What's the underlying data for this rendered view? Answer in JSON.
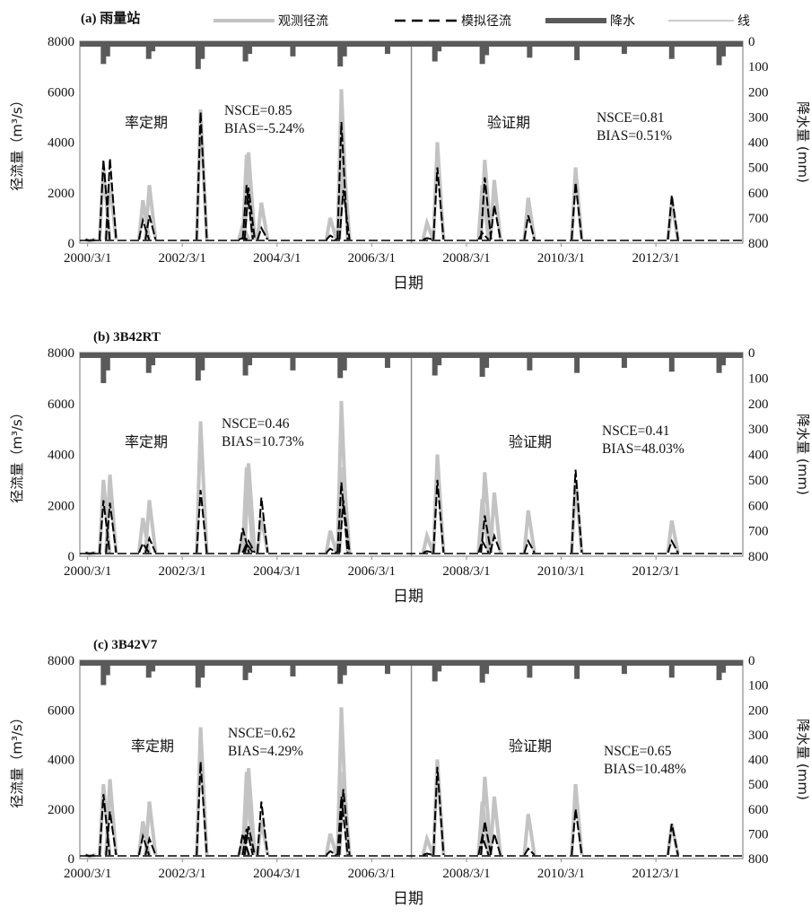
{
  "legend": {
    "observed": "观测径流",
    "simulated": "模拟径流",
    "precip": "降水",
    "line": "线"
  },
  "colors": {
    "observed": "#c3c3c3",
    "simulated": "#000000",
    "precip": "#5a5a5a",
    "frame": "#8c8c8c"
  },
  "chart_data": [
    {
      "type": "line",
      "title": "(a) 雨量站",
      "xlabel": "日期",
      "ylabel": "径流量（m³/s）",
      "y2label": "降水量 (mm)",
      "xlim": [
        "2000-01-01",
        "2013-12-31"
      ],
      "ylim": [
        0,
        8000
      ],
      "y2lim": [
        0,
        800
      ],
      "y2_inverted": true,
      "split_date": "2007-01-01",
      "xticks": [
        "2000/3/1",
        "2002/3/1",
        "2004/3/1",
        "2006/3/1",
        "2008/3/1",
        "2010/3/1",
        "2012/3/1"
      ],
      "yticks": [
        "0",
        "2000",
        "4000",
        "6000",
        "8000"
      ],
      "y2ticks": [
        "0",
        "100",
        "200",
        "300",
        "400",
        "500",
        "600",
        "700",
        "800"
      ],
      "periods": {
        "calibration": "率定期",
        "validation": "验证期"
      },
      "stats": {
        "calibration": {
          "nsce": "NSCE=0.85",
          "bias": "BIAS=-5.24%"
        },
        "validation": {
          "nsce": "NSCE=0.81",
          "bias": "BIAS=0.51%"
        }
      },
      "grid": false,
      "legend_position": "top",
      "series": [
        {
          "name": "观测径流",
          "x": [
            "2000-03-15",
            "2000-07-01",
            "2000-08-20",
            "2001-05-01",
            "2001-06-20",
            "2002-07-20",
            "2003-06-10",
            "2003-07-10",
            "2003-07-25",
            "2003-11-01",
            "2005-04-15",
            "2005-07-10",
            "2005-07-25",
            "2007-05-01",
            "2007-07-20",
            "2008-07-01",
            "2008-07-20",
            "2008-10-01",
            "2009-06-20",
            "2010-06-20",
            "2012-07-01"
          ],
          "values": [
            100,
            3000,
            2400,
            1700,
            2300,
            5300,
            700,
            3500,
            3600,
            1600,
            1000,
            6100,
            3500,
            800,
            4000,
            2300,
            3300,
            2500,
            1800,
            3000,
            1600
          ]
        },
        {
          "name": "模拟径流",
          "x": [
            "2000-03-15",
            "2000-07-01",
            "2000-08-20",
            "2001-05-01",
            "2001-06-20",
            "2002-07-20",
            "2003-06-10",
            "2003-07-10",
            "2003-07-25",
            "2003-11-01",
            "2005-04-15",
            "2005-07-10",
            "2005-07-25",
            "2007-05-01",
            "2007-07-20",
            "2008-07-01",
            "2008-07-20",
            "2008-10-01",
            "2009-06-20",
            "2010-06-20",
            "2012-07-01"
          ],
          "values": [
            100,
            3300,
            3350,
            900,
            1100,
            5200,
            200,
            2300,
            2200,
            600,
            300,
            4800,
            2100,
            200,
            3000,
            400,
            2600,
            1500,
            1100,
            2400,
            1900
          ]
        },
        {
          "name": "降水",
          "x": [
            "2000-07-01",
            "2000-08-01",
            "2001-06-15",
            "2001-07-15",
            "2002-07-01",
            "2002-08-01",
            "2003-07-01",
            "2003-08-01",
            "2004-07-01",
            "2005-07-01",
            "2005-08-01",
            "2006-07-01",
            "2007-07-01",
            "2007-08-01",
            "2008-07-01",
            "2008-08-01",
            "2009-07-01",
            "2010-07-01",
            "2011-07-01",
            "2012-07-01",
            "2013-07-01",
            "2013-08-01"
          ],
          "values": [
            90,
            60,
            70,
            40,
            110,
            70,
            80,
            50,
            60,
            100,
            60,
            50,
            80,
            40,
            90,
            55,
            65,
            75,
            50,
            70,
            95,
            60
          ]
        }
      ]
    },
    {
      "type": "line",
      "title": "(b) 3B42RT",
      "xlabel": "日期",
      "ylabel": "径流量（m³/s）",
      "y2label": "降水量 (mm)",
      "xlim": [
        "2000-01-01",
        "2013-12-31"
      ],
      "ylim": [
        0,
        8000
      ],
      "y2lim": [
        0,
        800
      ],
      "y2_inverted": true,
      "split_date": "2007-01-01",
      "xticks": [
        "2000/3/1",
        "2002/3/1",
        "2004/3/1",
        "2006/3/1",
        "2008/3/1",
        "2010/3/1",
        "2012/3/1"
      ],
      "yticks": [
        "0",
        "2000",
        "4000",
        "6000",
        "8000"
      ],
      "y2ticks": [
        "0",
        "100",
        "200",
        "300",
        "400",
        "500",
        "600",
        "700",
        "800"
      ],
      "periods": {
        "calibration": "率定期",
        "validation": "验证期"
      },
      "stats": {
        "calibration": {
          "nsce": "NSCE=0.46",
          "bias": "BIAS=10.73%"
        },
        "validation": {
          "nsce": "NSCE=0.41",
          "bias": "BIAS=48.03%"
        }
      },
      "grid": false,
      "series": [
        {
          "name": "观测径流",
          "x": [
            "2000-03-15",
            "2000-07-01",
            "2000-08-20",
            "2001-05-01",
            "2001-06-20",
            "2002-07-20",
            "2003-06-10",
            "2003-07-10",
            "2003-07-25",
            "2003-11-01",
            "2005-04-15",
            "2005-07-10",
            "2005-07-25",
            "2007-05-01",
            "2007-07-20",
            "2008-07-01",
            "2008-07-20",
            "2008-10-01",
            "2009-06-20",
            "2010-06-20",
            "2012-07-01"
          ],
          "values": [
            100,
            3000,
            3200,
            1500,
            2200,
            5300,
            700,
            3500,
            3650,
            1550,
            1000,
            6100,
            3500,
            800,
            4000,
            2250,
            3300,
            2500,
            1800,
            3000,
            1400
          ]
        },
        {
          "name": "模拟径流",
          "x": [
            "2000-03-15",
            "2000-07-01",
            "2000-08-20",
            "2001-05-01",
            "2001-06-20",
            "2002-07-20",
            "2003-06-10",
            "2003-07-10",
            "2003-07-25",
            "2003-11-01",
            "2005-04-15",
            "2005-07-10",
            "2005-07-25",
            "2007-05-01",
            "2007-07-20",
            "2008-07-01",
            "2008-07-20",
            "2008-10-01",
            "2009-06-20",
            "2010-06-20",
            "2012-07-01"
          ],
          "values": [
            100,
            2200,
            2100,
            500,
            700,
            2600,
            1100,
            500,
            600,
            2300,
            300,
            2900,
            2200,
            200,
            3000,
            600,
            1600,
            800,
            600,
            3400,
            600
          ]
        },
        {
          "name": "降水",
          "x": [
            "2000-07-01",
            "2000-08-01",
            "2001-06-15",
            "2001-07-15",
            "2002-07-01",
            "2002-08-01",
            "2003-07-01",
            "2003-08-01",
            "2004-07-01",
            "2005-07-01",
            "2005-08-01",
            "2006-07-01",
            "2007-07-01",
            "2007-08-01",
            "2008-07-01",
            "2008-08-01",
            "2009-07-01",
            "2010-07-01",
            "2011-07-01",
            "2012-07-01",
            "2013-07-01",
            "2013-08-01"
          ],
          "values": [
            120,
            70,
            80,
            50,
            110,
            70,
            90,
            50,
            70,
            100,
            70,
            60,
            90,
            50,
            95,
            60,
            70,
            80,
            60,
            75,
            80,
            50
          ]
        }
      ]
    },
    {
      "type": "line",
      "title": "(c) 3B42V7",
      "xlabel": "日期",
      "ylabel": "径流量（m³/s）",
      "y2label": "降水量 (mm)",
      "xlim": [
        "2000-01-01",
        "2013-12-31"
      ],
      "ylim": [
        0,
        8000
      ],
      "y2lim": [
        0,
        800
      ],
      "y2_inverted": true,
      "split_date": "2007-01-01",
      "xticks": [
        "2000/3/1",
        "2002/3/1",
        "2004/3/1",
        "2006/3/1",
        "2008/3/1",
        "2010/3/1",
        "2012/3/1"
      ],
      "yticks": [
        "0",
        "2000",
        "4000",
        "6000",
        "8000"
      ],
      "y2ticks": [
        "0",
        "100",
        "200",
        "300",
        "400",
        "500",
        "600",
        "700",
        "800"
      ],
      "periods": {
        "calibration": "率定期",
        "validation": "验证期"
      },
      "stats": {
        "calibration": {
          "nsce": "NSCE=0.62",
          "bias": "BIAS=4.29%"
        },
        "validation": {
          "nsce": "NSCE=0.65",
          "bias": "BIAS=10.48%"
        }
      },
      "grid": false,
      "series": [
        {
          "name": "观测径流",
          "x": [
            "2000-03-15",
            "2000-07-01",
            "2000-08-20",
            "2001-05-01",
            "2001-06-20",
            "2002-07-20",
            "2003-06-10",
            "2003-07-10",
            "2003-07-25",
            "2003-11-01",
            "2005-04-15",
            "2005-07-10",
            "2005-07-25",
            "2007-05-01",
            "2007-07-20",
            "2008-07-01",
            "2008-07-20",
            "2008-10-01",
            "2009-06-20",
            "2010-06-20",
            "2012-07-01"
          ],
          "values": [
            100,
            3000,
            3200,
            1500,
            2300,
            5300,
            700,
            3500,
            3650,
            1550,
            1000,
            6100,
            3500,
            800,
            4000,
            2300,
            3300,
            2500,
            1800,
            3000,
            1400
          ]
        },
        {
          "name": "模拟径流",
          "x": [
            "2000-03-15",
            "2000-07-01",
            "2000-08-20",
            "2001-05-01",
            "2001-06-20",
            "2002-07-20",
            "2003-06-10",
            "2003-07-10",
            "2003-07-25",
            "2003-11-01",
            "2005-04-15",
            "2005-07-10",
            "2005-07-25",
            "2007-05-01",
            "2007-07-20",
            "2008-07-01",
            "2008-07-20",
            "2008-10-01",
            "2009-06-20",
            "2010-06-20",
            "2012-07-01"
          ],
          "values": [
            100,
            2600,
            1900,
            900,
            800,
            3900,
            1000,
            1200,
            1300,
            2300,
            300,
            2500,
            2800,
            200,
            3700,
            900,
            1500,
            1000,
            400,
            2000,
            1400
          ]
        },
        {
          "name": "降水",
          "x": [
            "2000-07-01",
            "2000-08-01",
            "2001-06-15",
            "2001-07-15",
            "2002-07-01",
            "2002-08-01",
            "2003-07-01",
            "2003-08-01",
            "2004-07-01",
            "2005-07-01",
            "2005-08-01",
            "2006-07-01",
            "2007-07-01",
            "2007-08-01",
            "2008-07-01",
            "2008-08-01",
            "2009-07-01",
            "2010-07-01",
            "2011-07-01",
            "2012-07-01",
            "2013-07-01",
            "2013-08-01"
          ],
          "values": [
            100,
            60,
            70,
            45,
            110,
            70,
            80,
            50,
            65,
            95,
            60,
            55,
            85,
            45,
            90,
            55,
            70,
            75,
            55,
            70,
            80,
            50
          ]
        }
      ]
    }
  ]
}
